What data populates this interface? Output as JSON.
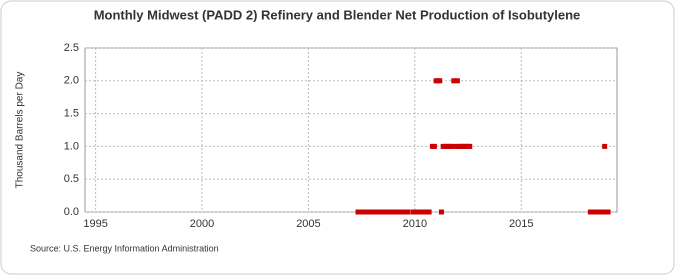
{
  "chart_data": {
    "type": "scatter",
    "title": "Monthly Midwest (PADD 2) Refinery and Blender Net Production of Isobutylene",
    "y_label": "Thousand Barrels per Day",
    "source": "Source: U.S. Energy Information Administration",
    "series": [
      {
        "name": "Isobutylene",
        "color": "#cc0000",
        "x": [
          2007.33,
          2007.42,
          2007.5,
          2007.58,
          2007.67,
          2007.75,
          2007.83,
          2007.92,
          2008,
          2008.08,
          2008.17,
          2008.25,
          2008.33,
          2008.42,
          2008.5,
          2008.58,
          2008.67,
          2008.75,
          2008.83,
          2008.92,
          2009,
          2009.08,
          2009.17,
          2009.25,
          2009.33,
          2009.42,
          2009.5,
          2009.58,
          2009.67,
          2009.92,
          2010,
          2010.08,
          2010.17,
          2010.33,
          2010.42,
          2010.5,
          2010.58,
          2010.67,
          2010.83,
          2010.92,
          2011,
          2011.08,
          2011.17,
          2011.25,
          2011.33,
          2011.42,
          2011.5,
          2011.58,
          2011.67,
          2011.75,
          2011.83,
          2011.92,
          2012,
          2012.08,
          2012.17,
          2012.25,
          2012.33,
          2012.42,
          2012.5,
          2012.58,
          2018.25,
          2018.33,
          2018.42,
          2018.5,
          2018.58,
          2018.67,
          2018.75,
          2018.83,
          2018.92,
          2019,
          2019.08
        ],
        "values": [
          0,
          0,
          0,
          0,
          0,
          0,
          0,
          0,
          0,
          0,
          0,
          0,
          0,
          0,
          0,
          0,
          0,
          0,
          0,
          0,
          0,
          0,
          0,
          0,
          0,
          0,
          0,
          0,
          0,
          0,
          0,
          0,
          0,
          0,
          0,
          0,
          0,
          0,
          1,
          1,
          2,
          2,
          2,
          0,
          1,
          1,
          1,
          1,
          1,
          1,
          2,
          1,
          2,
          1,
          1,
          1,
          1,
          1,
          1,
          1,
          0,
          0,
          0,
          0,
          0,
          0,
          0,
          0,
          1,
          0,
          0
        ]
      }
    ],
    "xlim": [
      1994.5,
      2019.5
    ],
    "xticks": [
      1995,
      2000,
      2005,
      2010,
      2015
    ],
    "ylim": [
      0,
      2.5
    ],
    "yticks": [
      {
        "value": 0,
        "label": "0.0"
      },
      {
        "value": 0.5,
        "label": "0.5"
      },
      {
        "value": 1,
        "label": "1.0"
      },
      {
        "value": 1.5,
        "label": "1.5"
      },
      {
        "value": 2,
        "label": "2.0"
      },
      {
        "value": 2.5,
        "label": "2.5"
      }
    ],
    "grid": true
  }
}
